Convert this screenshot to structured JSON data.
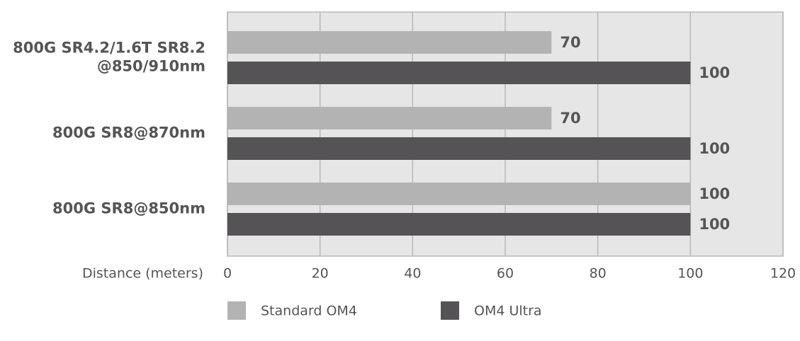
{
  "chart_data": {
    "type": "bar",
    "orientation": "horizontal",
    "x_label": "Distance (meters)",
    "categories": [
      "800G SR4.2/1.6T SR8.2\n@850/910nm",
      "800G SR8@870nm",
      "800G SR8@850nm"
    ],
    "series": [
      {
        "name": "Standard OM4",
        "color": "#b3b3b3",
        "values": [
          70,
          70,
          100
        ]
      },
      {
        "name": "OM4 Ultra",
        "color": "#555355",
        "values": [
          100,
          100,
          100
        ]
      }
    ],
    "xlim": [
      0,
      120
    ],
    "xticks": [
      0,
      20,
      40,
      60,
      80,
      100,
      120
    ],
    "grid": true,
    "legend": "bottom"
  }
}
